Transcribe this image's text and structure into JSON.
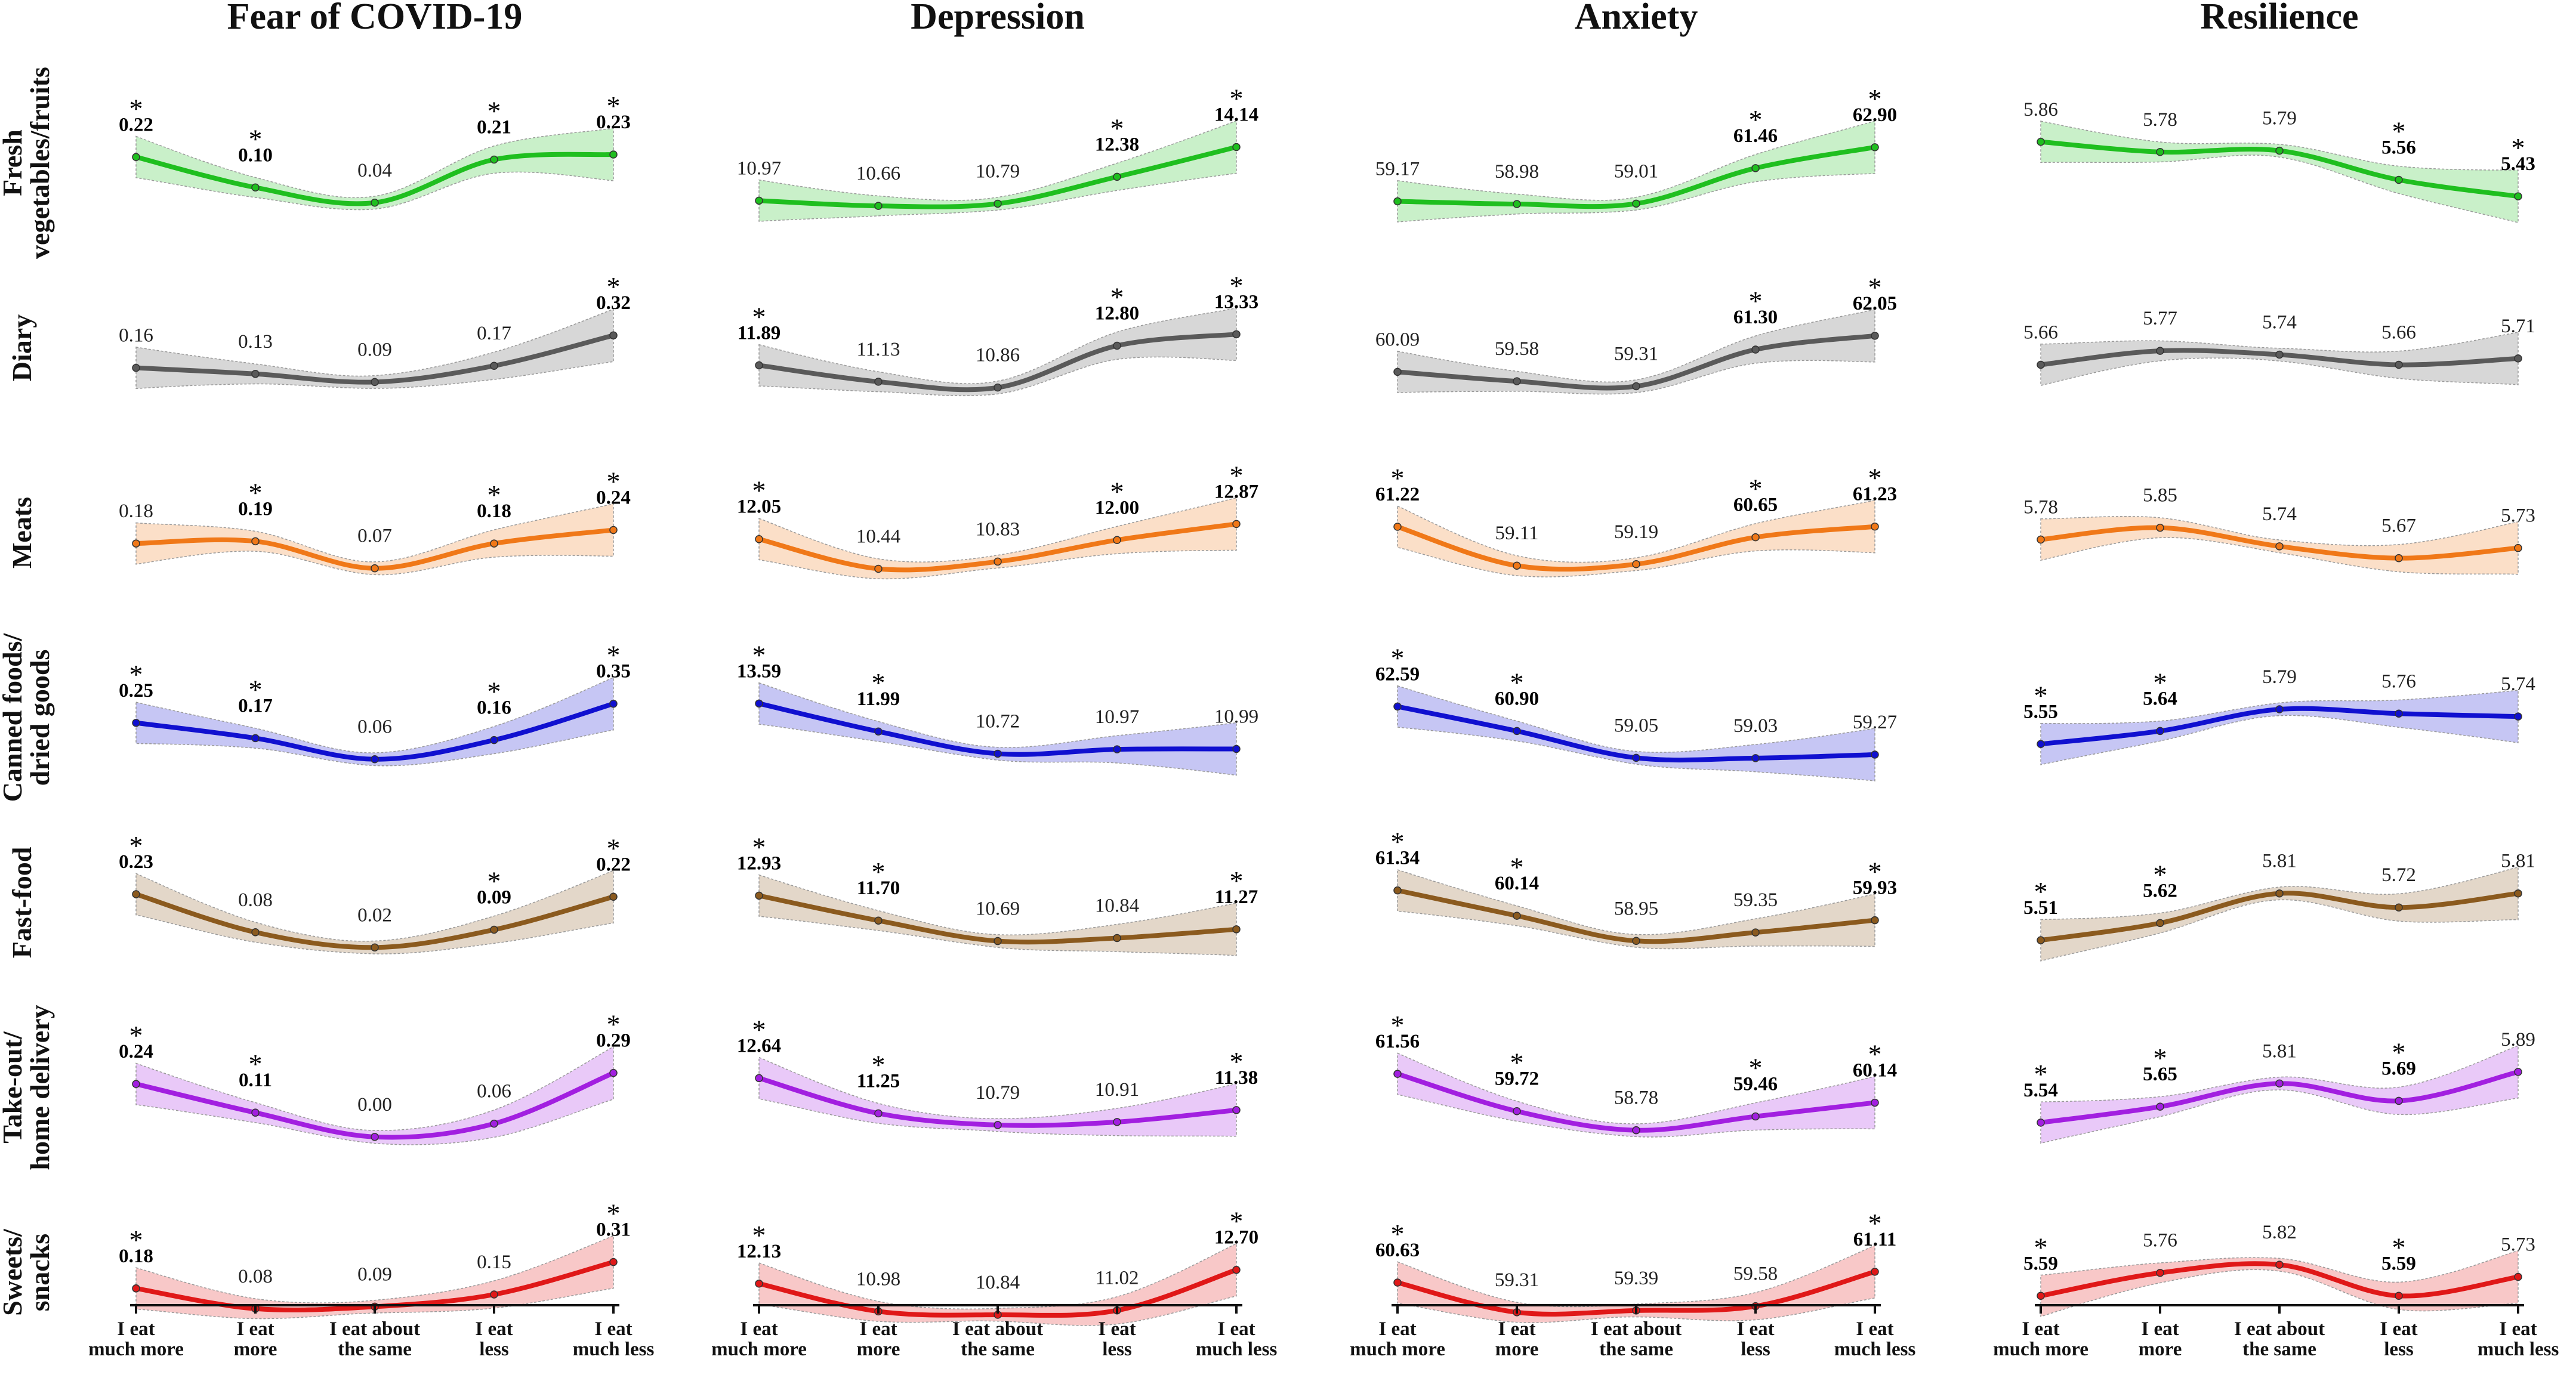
{
  "chart_data": {
    "type": "line",
    "columns": [
      {
        "key": "fear",
        "title": "Fear of COVID-19"
      },
      {
        "key": "depression",
        "title": "Depression"
      },
      {
        "key": "anxiety",
        "title": "Anxiety"
      },
      {
        "key": "resilience",
        "title": "Resilience"
      }
    ],
    "x_ticks": [
      [
        "I eat",
        "much more"
      ],
      [
        "I eat",
        "more"
      ],
      [
        "I eat about",
        "the same"
      ],
      [
        "I eat",
        "less"
      ],
      [
        "I eat",
        "much less"
      ]
    ],
    "rows": [
      {
        "key": "vegetables",
        "label": [
          "Fresh",
          "vegetables/fruits"
        ],
        "color": "#1fbf1f",
        "series": {
          "fear": {
            "values": [
              0.22,
              0.1,
              0.04,
              0.21,
              0.23
            ],
            "labels": [
              "0.22",
              "0.10",
              "0.04",
              "0.21",
              "0.23"
            ],
            "sig": [
              true,
              true,
              false,
              true,
              true
            ],
            "ylim": [
              -0.05,
              0.35
            ]
          },
          "depression": {
            "values": [
              10.97,
              10.66,
              10.79,
              12.38,
              14.14
            ],
            "labels": [
              "10.97",
              "10.66",
              "10.79",
              "12.38",
              "14.14"
            ],
            "sig": [
              false,
              false,
              false,
              true,
              true
            ],
            "ylim": [
              9.5,
              15.5
            ]
          },
          "anxiety": {
            "values": [
              59.17,
              58.98,
              59.01,
              61.46,
              62.9
            ],
            "labels": [
              "59.17",
              "58.98",
              "59.01",
              "61.46",
              "62.90"
            ],
            "sig": [
              false,
              false,
              false,
              true,
              true
            ],
            "ylim": [
              57.5,
              64.5
            ]
          },
          "resilience": {
            "values": [
              5.86,
              5.78,
              5.79,
              5.56,
              5.43
            ],
            "labels": [
              "5.86",
              "5.78",
              "5.79",
              "5.56",
              "5.43"
            ],
            "sig": [
              false,
              false,
              false,
              true,
              true
            ],
            "ylim": [
              5.2,
              6.0
            ]
          }
        }
      },
      {
        "key": "dairy",
        "label": [
          "Diary"
        ],
        "color": "#5a5a5a",
        "series": {
          "fear": {
            "values": [
              0.16,
              0.13,
              0.09,
              0.17,
              0.32
            ],
            "labels": [
              "0.16",
              "0.13",
              "0.09",
              "0.17",
              "0.32"
            ],
            "sig": [
              false,
              false,
              false,
              false,
              true
            ],
            "ylim": [
              -0.05,
              0.45
            ]
          },
          "depression": {
            "values": [
              11.89,
              11.13,
              10.86,
              12.8,
              13.33
            ],
            "labels": [
              "11.89",
              "11.13",
              "10.86",
              "12.80",
              "13.33"
            ],
            "sig": [
              true,
              false,
              false,
              true,
              true
            ],
            "ylim": [
              9.8,
              14.5
            ]
          },
          "anxiety": {
            "values": [
              60.09,
              59.58,
              59.31,
              61.3,
              62.05
            ],
            "labels": [
              "60.09",
              "59.58",
              "59.31",
              "61.30",
              "62.05"
            ],
            "sig": [
              false,
              false,
              false,
              true,
              true
            ],
            "ylim": [
              58.0,
              63.5
            ]
          },
          "resilience": {
            "values": [
              5.66,
              5.77,
              5.74,
              5.66,
              5.71
            ],
            "labels": [
              "5.66",
              "5.77",
              "5.74",
              "5.66",
              "5.71"
            ],
            "sig": [
              false,
              false,
              false,
              false,
              false
            ],
            "ylim": [
              5.3,
              6.1
            ]
          }
        }
      },
      {
        "key": "meats",
        "label": [
          "Meats"
        ],
        "color": "#f07818",
        "series": {
          "fear": {
            "values": [
              0.18,
              0.19,
              0.07,
              0.18,
              0.24
            ],
            "labels": [
              "0.18",
              "0.19",
              "0.07",
              "0.18",
              "0.24"
            ],
            "sig": [
              false,
              true,
              false,
              true,
              true
            ],
            "ylim": [
              -0.05,
              0.4
            ]
          },
          "depression": {
            "values": [
              12.05,
              10.44,
              10.83,
              12.0,
              12.87
            ],
            "labels": [
              "12.05",
              "10.44",
              "10.83",
              "12.00",
              "12.87"
            ],
            "sig": [
              true,
              false,
              false,
              true,
              true
            ],
            "ylim": [
              9.0,
              14.5
            ]
          },
          "anxiety": {
            "values": [
              61.22,
              59.11,
              59.19,
              60.65,
              61.23
            ],
            "labels": [
              "61.22",
              "59.11",
              "59.19",
              "60.65",
              "61.23"
            ],
            "sig": [
              true,
              false,
              false,
              true,
              true
            ],
            "ylim": [
              57.5,
              63.0
            ]
          },
          "resilience": {
            "values": [
              5.78,
              5.85,
              5.74,
              5.67,
              5.73
            ],
            "labels": [
              "5.78",
              "5.85",
              "5.74",
              "5.67",
              "5.73"
            ],
            "sig": [
              false,
              false,
              false,
              false,
              false
            ],
            "ylim": [
              5.45,
              6.05
            ]
          }
        }
      },
      {
        "key": "canned",
        "label": [
          "Canned foods/",
          "dried goods"
        ],
        "color": "#1010d0",
        "series": {
          "fear": {
            "values": [
              0.25,
              0.17,
              0.06,
              0.16,
              0.35
            ],
            "labels": [
              "0.25",
              "0.17",
              "0.06",
              "0.16",
              "0.35"
            ],
            "sig": [
              true,
              true,
              false,
              true,
              true
            ],
            "ylim": [
              -0.05,
              0.48
            ]
          },
          "depression": {
            "values": [
              13.59,
              11.99,
              10.72,
              10.97,
              10.99
            ],
            "labels": [
              "13.59",
              "11.99",
              "10.72",
              "10.97",
              "10.99"
            ],
            "sig": [
              true,
              true,
              false,
              false,
              false
            ],
            "ylim": [
              9.2,
              15.0
            ]
          },
          "anxiety": {
            "values": [
              62.59,
              60.9,
              59.05,
              59.03,
              59.27
            ],
            "labels": [
              "62.59",
              "60.90",
              "59.05",
              "59.03",
              "59.27"
            ],
            "sig": [
              true,
              true,
              false,
              false,
              false
            ],
            "ylim": [
              57.5,
              64.5
            ]
          },
          "resilience": {
            "values": [
              5.55,
              5.64,
              5.79,
              5.76,
              5.74
            ],
            "labels": [
              "5.55",
              "5.64",
              "5.79",
              "5.76",
              "5.74"
            ],
            "sig": [
              true,
              true,
              false,
              false,
              false
            ],
            "ylim": [
              5.3,
              6.0
            ]
          }
        }
      },
      {
        "key": "fastfood",
        "label": [
          "Fast-food"
        ],
        "color": "#8b5a1e",
        "series": {
          "fear": {
            "values": [
              0.23,
              0.08,
              0.02,
              0.09,
              0.22
            ],
            "labels": [
              "0.23",
              "0.08",
              "0.02",
              "0.09",
              "0.22"
            ],
            "sig": [
              true,
              false,
              false,
              true,
              true
            ],
            "ylim": [
              -0.05,
              0.35
            ]
          },
          "depression": {
            "values": [
              12.93,
              11.7,
              10.69,
              10.84,
              11.27
            ],
            "labels": [
              "12.93",
              "11.70",
              "10.69",
              "10.84",
              "11.27"
            ],
            "sig": [
              true,
              true,
              false,
              false,
              true
            ],
            "ylim": [
              9.5,
              14.5
            ]
          },
          "anxiety": {
            "values": [
              61.34,
              60.14,
              58.95,
              59.35,
              59.93
            ],
            "labels": [
              "61.34",
              "60.14",
              "58.95",
              "59.35",
              "59.93"
            ],
            "sig": [
              true,
              true,
              false,
              false,
              true
            ],
            "ylim": [
              57.8,
              62.6
            ]
          },
          "resilience": {
            "values": [
              5.51,
              5.62,
              5.81,
              5.72,
              5.81
            ],
            "labels": [
              "5.51",
              "5.62",
              "5.81",
              "5.72",
              "5.81"
            ],
            "sig": [
              true,
              true,
              false,
              false,
              false
            ],
            "ylim": [
              5.35,
              6.0
            ]
          }
        }
      },
      {
        "key": "takeout",
        "label": [
          "Take-out/",
          "home delivery"
        ],
        "color": "#a21fe0",
        "series": {
          "fear": {
            "values": [
              0.24,
              0.11,
              0.0,
              0.06,
              0.29
            ],
            "labels": [
              "0.24",
              "0.11",
              "0.00",
              "0.06",
              "0.29"
            ],
            "sig": [
              true,
              true,
              false,
              false,
              true
            ],
            "ylim": [
              -0.06,
              0.4
            ]
          },
          "depression": {
            "values": [
              12.64,
              11.25,
              10.79,
              10.91,
              11.38
            ],
            "labels": [
              "12.64",
              "11.25",
              "10.79",
              "10.91",
              "11.38"
            ],
            "sig": [
              true,
              true,
              false,
              false,
              true
            ],
            "ylim": [
              9.8,
              13.8
            ]
          },
          "anxiety": {
            "values": [
              61.56,
              59.72,
              58.78,
              59.46,
              60.14
            ],
            "labels": [
              "61.56",
              "59.72",
              "58.78",
              "59.46",
              "60.14"
            ],
            "sig": [
              true,
              true,
              false,
              true,
              true
            ],
            "ylim": [
              57.8,
              62.8
            ]
          },
          "resilience": {
            "values": [
              5.54,
              5.65,
              5.81,
              5.69,
              5.89
            ],
            "labels": [
              "5.54",
              "5.65",
              "5.81",
              "5.69",
              "5.89"
            ],
            "sig": [
              true,
              true,
              false,
              true,
              false
            ],
            "ylim": [
              5.35,
              6.05
            ]
          }
        }
      },
      {
        "key": "sweets",
        "label": [
          "Sweets/",
          "snacks"
        ],
        "color": "#e01818",
        "series": {
          "fear": {
            "values": [
              0.18,
              0.08,
              0.09,
              0.15,
              0.31
            ],
            "labels": [
              "0.18",
              "0.08",
              "0.09",
              "0.15",
              "0.31"
            ],
            "sig": [
              true,
              false,
              false,
              false,
              true
            ],
            "ylim": [
              -0.05,
              0.45
            ]
          },
          "depression": {
            "values": [
              12.13,
              10.98,
              10.84,
              11.02,
              12.7
            ],
            "labels": [
              "12.13",
              "10.98",
              "10.84",
              "11.02",
              "12.70"
            ],
            "sig": [
              true,
              false,
              false,
              false,
              true
            ],
            "ylim": [
              10.0,
              14.2
            ]
          },
          "anxiety": {
            "values": [
              60.63,
              59.31,
              59.39,
              59.58,
              61.11
            ],
            "labels": [
              "60.63",
              "59.31",
              "59.39",
              "59.58",
              "61.11"
            ],
            "sig": [
              true,
              false,
              false,
              false,
              true
            ],
            "ylim": [
              58.3,
              62.8
            ]
          },
          "resilience": {
            "values": [
              5.59,
              5.76,
              5.82,
              5.59,
              5.73
            ],
            "labels": [
              "5.59",
              "5.76",
              "5.82",
              "5.59",
              "5.73"
            ],
            "sig": [
              true,
              false,
              false,
              true,
              false
            ],
            "ylim": [
              5.3,
              6.05
            ]
          }
        }
      }
    ],
    "significance_marker": "*"
  }
}
